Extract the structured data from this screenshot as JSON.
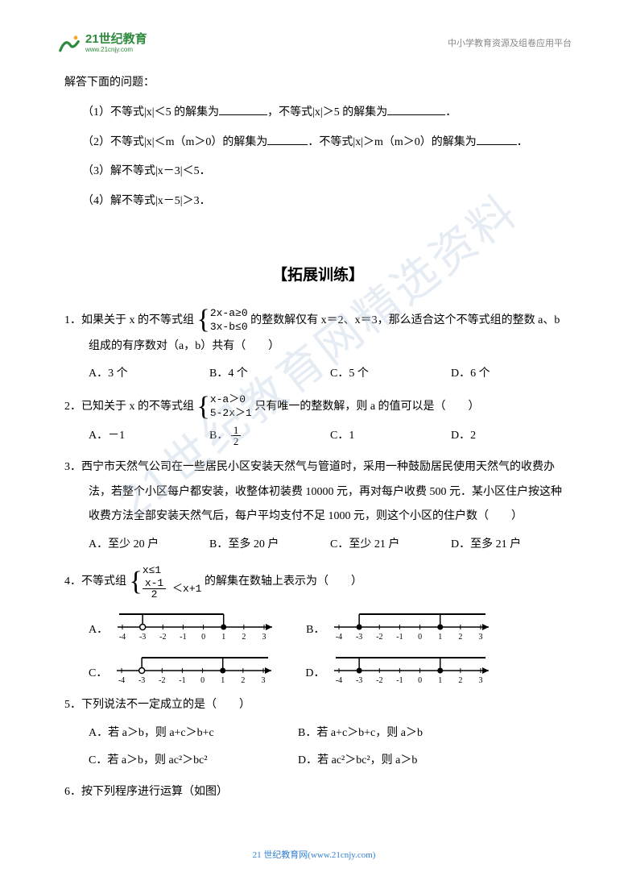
{
  "header": {
    "logo_cn": "21世纪教育",
    "logo_en": "www.21cnjy.com",
    "right": "中小学教育资源及组卷应用平台"
  },
  "watermark": "21世纪教育网精选资料",
  "intro": "解答下面的问题：",
  "p1": {
    "a": "（1）不等式|x|＜5 的解集为",
    "b": "，不等式|x|＞5 的解集为",
    "c": "．"
  },
  "p2": {
    "a": "（2）不等式|x|＜m（m＞0）的解集为",
    "b": "．不等式|x|＞m（m＞0）的解集为",
    "c": "．"
  },
  "p3": "（3）解不等式|x－3|＜5．",
  "p4": "（4）解不等式|x－5|＞3．",
  "section": "【拓展训练】",
  "q1": {
    "stem_a": "1．如果关于 x 的不等式组",
    "sys1": "2x-a≥0",
    "sys2": "3x-b≤0",
    "stem_b": "的整数解仅有 x＝2、x＝3，那么适合这个不等式组的整数 a、b",
    "stem_c": "组成的有序数对（a，b）共有（　　）",
    "A": "A．3 个",
    "B": "B．4 个",
    "C": "C．5 个",
    "D": "D．6 个"
  },
  "q2": {
    "stem_a": "2．已知关于 x 的不等式组",
    "sys1": "x-a＞0",
    "sys2": "5-2x＞1",
    "stem_b": "只有唯一的整数解，则 a 的值可以是（　　）",
    "A": "A．－1",
    "B_pre": "B．",
    "B_num": "1",
    "B_den": "2",
    "C": "C．1",
    "D": "D．2"
  },
  "q3": {
    "l1": "3．西宁市天然气公司在一些居民小区安装天然气与管道时，采用一种鼓励居民使用天然气的收费办",
    "l2": "法，若整个小区每户都安装，收整体初装费 10000 元，再对每户收费 500 元．某小区住户按这种",
    "l3": "收费方法全部安装天然气后，每户平均支付不足 1000 元，则这个小区的住户数（　　）",
    "A": "A．至少 20 户",
    "B": "B．至多 20 户",
    "C": "C．至少 21 户",
    "D": "D．至多 21 户"
  },
  "q4": {
    "stem_a": "4．不等式组",
    "sys1": "x≤1",
    "sys2_num": "x-1",
    "sys2_den": "2",
    "sys2_tail": "＜x+1",
    "stem_b": "的解集在数轴上表示为（　　）",
    "A": "A．",
    "B": "B．",
    "C": "C．",
    "D": "D．",
    "ticks": [
      "-4",
      "-3",
      "-2",
      "-1",
      "0",
      "1",
      "2",
      "3"
    ]
  },
  "q5": {
    "stem": "5．下列说法不一定成立的是（　　）",
    "A": "A．若 a＞b，则 a+c＞b+c",
    "B": "B．若 a+c＞b+c，则 a＞b",
    "C": "C．若 a＞b，则 ac²＞bc²",
    "D": "D．若 ac²＞bc²，则 a＞b"
  },
  "q6": "6．按下列程序进行运算（如图）",
  "footer": "21 世纪教育网(www.21cnjy.com)",
  "style": {
    "text_color": "#000000",
    "accent_color": "#2e8b3d",
    "footer_color": "#3080d0",
    "bg": "#ffffff",
    "font_size": 14
  },
  "numlines": {
    "range": [
      -4,
      3
    ],
    "variants": {
      "A": {
        "seg": [
          -3,
          1
        ],
        "left_open": true,
        "right_open": false,
        "ray_right": false,
        "ray_left": true
      },
      "B": {
        "seg": [
          -3,
          1
        ],
        "left_open": false,
        "right_open": false,
        "ray_right": true,
        "ray_left": false
      },
      "C": {
        "seg": [
          -3,
          1
        ],
        "left_open": true,
        "right_open": false,
        "ray_right": true,
        "ray_left": false
      },
      "D": {
        "seg": [
          -3,
          1
        ],
        "left_open": false,
        "right_open": false,
        "ray_right": false,
        "ray_left": false,
        "full": true
      }
    }
  }
}
